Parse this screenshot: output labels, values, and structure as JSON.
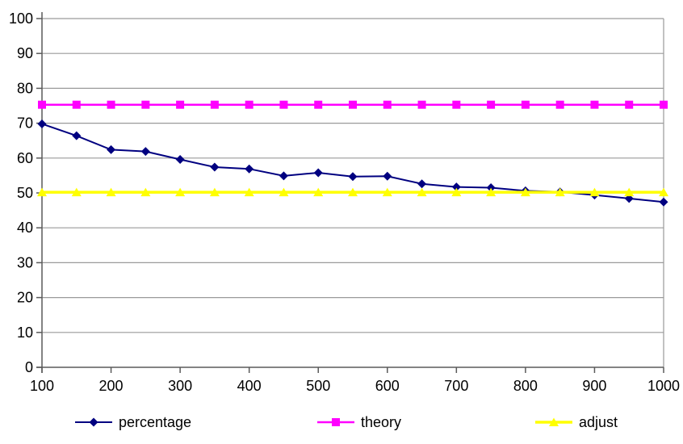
{
  "chart_data": {
    "type": "line",
    "title": "",
    "xlabel": "",
    "ylabel": "",
    "x": [
      100,
      150,
      200,
      250,
      300,
      350,
      400,
      450,
      500,
      550,
      600,
      650,
      700,
      750,
      800,
      850,
      900,
      950,
      1000
    ],
    "xticks": [
      100,
      200,
      300,
      400,
      500,
      600,
      700,
      800,
      900,
      1000
    ],
    "yticks": [
      0,
      10,
      20,
      30,
      40,
      50,
      60,
      70,
      80,
      90,
      100
    ],
    "xlim": [
      100,
      1000
    ],
    "ylim": [
      0,
      100
    ],
    "grid": "horizontal",
    "legend_position": "bottom",
    "series": [
      {
        "name": "percentage",
        "color": "#000080",
        "marker": "diamond",
        "line_width": 2,
        "values": [
          69.8,
          66.4,
          62.4,
          61.9,
          59.6,
          57.4,
          56.9,
          54.9,
          55.8,
          54.7,
          54.8,
          52.6,
          51.7,
          51.5,
          50.6,
          50.3,
          49.4,
          48.4,
          47.4
        ]
      },
      {
        "name": "theory",
        "color": "#FF00FF",
        "marker": "square",
        "line_width": 2.5,
        "values": [
          75.3,
          75.3,
          75.3,
          75.3,
          75.3,
          75.3,
          75.3,
          75.3,
          75.3,
          75.3,
          75.3,
          75.3,
          75.3,
          75.3,
          75.3,
          75.3,
          75.3,
          75.3,
          75.3
        ]
      },
      {
        "name": "adjust",
        "color": "#FFFF00",
        "marker": "triangle",
        "line_width": 3.5,
        "values": [
          50.2,
          50.2,
          50.2,
          50.2,
          50.2,
          50.2,
          50.2,
          50.2,
          50.2,
          50.2,
          50.2,
          50.2,
          50.2,
          50.2,
          50.2,
          50.2,
          50.2,
          50.2,
          50.2
        ]
      }
    ],
    "colors": {
      "background": "#FFFFFF",
      "gridline": "#9A9A9A",
      "axis": "#5A5A5A",
      "tick_text": "#000000"
    }
  }
}
